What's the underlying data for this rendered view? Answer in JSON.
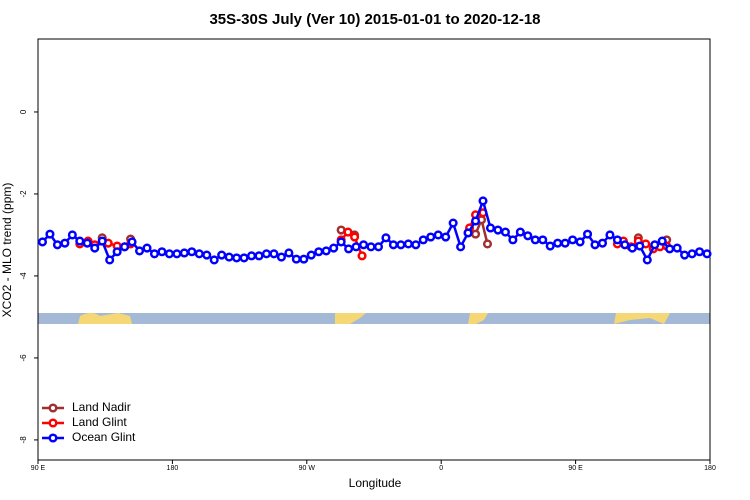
{
  "chart_data": {
    "type": "line",
    "title": "35S-30S July (Ver 10)   2015-01-01 to 2020-12-18",
    "x_label": "Longitude",
    "y_label": "XCO2 - MLO trend (ppm)",
    "xlim": [
      90,
      540
    ],
    "ylim": [
      -8.49,
      1.78
    ],
    "xticks": [
      {
        "value": 90,
        "label": "90 E"
      },
      {
        "value": 180,
        "label": "180"
      },
      {
        "value": 270,
        "label": "90 W"
      },
      {
        "value": 360,
        "label": "0"
      },
      {
        "value": 450,
        "label": "90 E"
      },
      {
        "value": 540,
        "label": "180"
      }
    ],
    "yticks": [
      0,
      -2,
      -4,
      -6,
      -8
    ],
    "legend": "bottom-left",
    "series": [
      {
        "name": "Land Nadir",
        "color": "#a03030",
        "x": [
          133,
          142,
          152,
          220,
          293,
          302,
          340,
          378,
          383,
          387,
          391,
          440,
          492,
          500,
          511
        ],
        "values": [
          -3.07,
          null,
          -3.1,
          null,
          -2.88,
          -3.0,
          null,
          -2.95,
          -2.98,
          -2.63,
          -3.22,
          null,
          -3.07,
          null,
          -3.12
        ]
      },
      {
        "name": "Land Glint",
        "color": "#ff0000",
        "x": [
          118,
          123.5,
          128,
          137,
          143,
          148,
          152,
          220,
          293,
          297.6,
          302,
          307,
          340,
          379,
          383,
          388,
          440,
          478,
          482,
          487,
          492,
          497,
          502,
          506.5,
          511
        ],
        "values": [
          -3.22,
          -3.15,
          -3.24,
          -3.2,
          -3.27,
          -3.29,
          -3.22,
          null,
          -3.12,
          -2.93,
          -3.05,
          -3.51,
          null,
          -2.83,
          -2.51,
          -2.46,
          null,
          -3.22,
          -3.15,
          -3.29,
          -3.15,
          -3.22,
          -3.34,
          -3.29,
          -3.27
        ]
      },
      {
        "name": "Ocean Glint",
        "color": "#0000ff",
        "x": [
          93,
          98,
          103,
          108,
          113,
          118,
          123,
          128,
          133,
          138,
          143,
          148,
          153,
          158,
          163,
          168,
          173,
          178,
          183,
          188,
          193,
          198,
          203,
          208,
          213,
          218,
          223,
          228,
          233,
          238,
          243,
          248,
          253,
          258,
          263,
          268,
          273,
          278,
          283,
          288,
          293,
          298,
          303,
          308,
          313,
          318,
          323,
          328,
          333,
          338,
          343,
          348,
          353,
          358,
          363,
          368,
          373,
          378,
          383,
          388,
          393,
          398,
          403,
          408,
          413,
          418,
          423,
          428,
          433,
          438,
          443,
          448,
          453,
          458,
          463,
          468,
          473,
          478,
          483,
          488,
          493,
          498,
          503,
          508,
          513,
          518,
          523,
          528,
          533,
          538
        ],
        "values": [
          -3.17,
          -2.98,
          -3.24,
          -3.2,
          -3.0,
          -3.15,
          -3.2,
          -3.32,
          -3.15,
          -3.61,
          -3.41,
          -3.29,
          -3.17,
          -3.39,
          -3.32,
          -3.46,
          -3.41,
          -3.46,
          -3.46,
          -3.44,
          -3.41,
          -3.46,
          -3.49,
          -3.61,
          -3.49,
          -3.54,
          -3.56,
          -3.56,
          -3.51,
          -3.51,
          -3.46,
          -3.46,
          -3.54,
          -3.44,
          -3.59,
          -3.59,
          -3.49,
          -3.41,
          -3.39,
          -3.32,
          -3.17,
          -3.34,
          -3.29,
          -3.24,
          -3.29,
          -3.29,
          -3.07,
          -3.24,
          -3.24,
          -3.22,
          -3.24,
          -3.12,
          -3.05,
          -3.0,
          -3.05,
          -2.71,
          -3.29,
          -2.95,
          -2.66,
          -2.17,
          -2.83,
          -2.88,
          -2.93,
          -3.12,
          -2.93,
          -3.02,
          -3.12,
          -3.12,
          -3.27,
          -3.2,
          -3.2,
          -3.12,
          -3.17,
          -2.98,
          -3.24,
          -3.2,
          -3.0,
          -3.12,
          -3.24,
          -3.32,
          -3.27,
          -3.61,
          -3.24,
          -3.15,
          -3.34,
          -3.32,
          -3.49,
          -3.46,
          -3.41,
          -3.46
        ]
      }
    ]
  }
}
